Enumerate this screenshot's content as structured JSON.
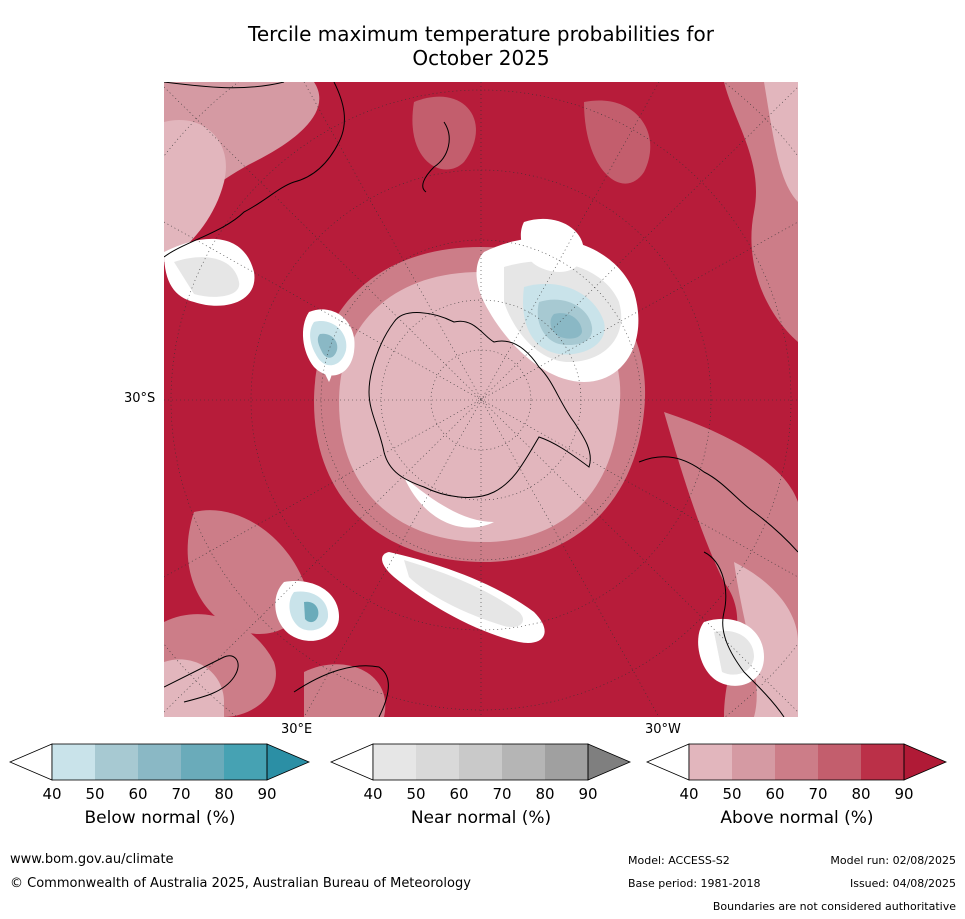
{
  "title_line1": "Tercile maximum temperature probabilities for",
  "title_line2": "October 2025",
  "axis_labels": {
    "lat": "30°S",
    "lon_east": "30°E",
    "lon_west": "30°W"
  },
  "colorbars": [
    {
      "title": "Below normal (%)",
      "ticks": [
        "40",
        "50",
        "60",
        "70",
        "80",
        "90"
      ],
      "colors": [
        "#ffffff",
        "#c9e3ea",
        "#a7c9d2",
        "#8ab8c5",
        "#6aabba",
        "#46a2b3",
        "#2b8fa5"
      ]
    },
    {
      "title": "Near normal (%)",
      "ticks": [
        "40",
        "50",
        "60",
        "70",
        "80",
        "90"
      ],
      "colors": [
        "#ffffff",
        "#e6e6e6",
        "#d9d9d9",
        "#c9c9c9",
        "#b5b5b5",
        "#a0a0a0",
        "#7f7f7f"
      ]
    },
    {
      "title": "Above normal (%)",
      "ticks": [
        "40",
        "50",
        "60",
        "70",
        "80",
        "90"
      ],
      "colors": [
        "#ffffff",
        "#e2b6bd",
        "#d59aa3",
        "#cc7d88",
        "#c35e6d",
        "#bb3048",
        "#b01a36"
      ]
    }
  ],
  "footer": {
    "website": "www.bom.gov.au/climate",
    "copyright": "© Commonwealth of Australia 2025, Australian Bureau of Meteorology",
    "model": "Model: ACCESS-S2",
    "base_period": "Base period: 1981-2018",
    "model_run": "Model run: 02/08/2025",
    "issued": "Issued: 04/08/2025",
    "disclaimer": "Boundaries are not considered authoritative"
  }
}
